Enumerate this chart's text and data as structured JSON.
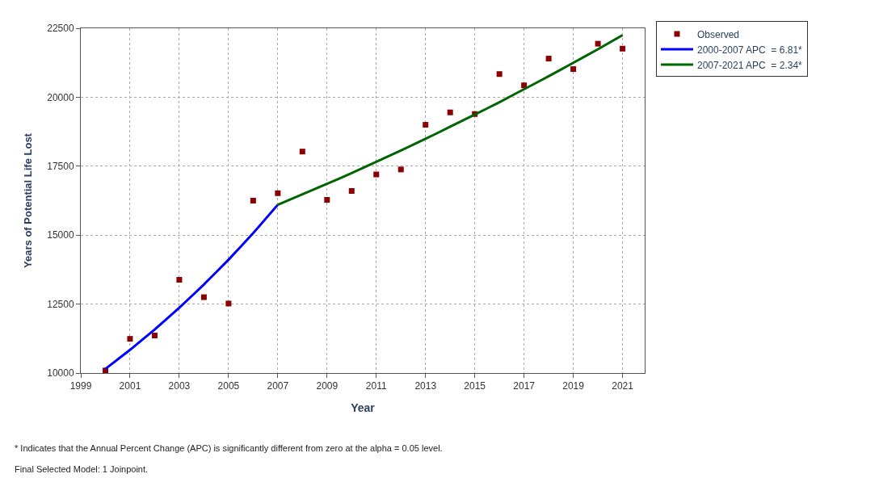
{
  "chart_data": {
    "type": "scatter",
    "xlabel": "Year",
    "ylabel": "Years of Potential Life Lost",
    "xlim": [
      1999,
      2021.9
    ],
    "xticks": [
      1999,
      2001,
      2003,
      2005,
      2007,
      2009,
      2011,
      2013,
      2015,
      2017,
      2019,
      2021
    ],
    "ylim": [
      10000,
      22500
    ],
    "yticks": [
      10000,
      12500,
      15000,
      17500,
      20000,
      22500
    ],
    "grid": true,
    "legend": "top right",
    "series": [
      {
        "name": "Observed",
        "marker": "square",
        "color": "#8b0000",
        "x": [
          2000,
          2001,
          2002,
          2003,
          2004,
          2005,
          2006,
          2007,
          2008,
          2009,
          2010,
          2011,
          2012,
          2013,
          2014,
          2015,
          2016,
          2017,
          2018,
          2019,
          2020,
          2021
        ],
        "values": [
          10090,
          11240,
          11360,
          13380,
          12750,
          12520,
          16250,
          16520,
          18030,
          16280,
          16600,
          17200,
          17380,
          19000,
          19450,
          19390,
          20840,
          20430,
          21400,
          21020,
          21940,
          21760
        ]
      },
      {
        "name": "2000-2007 APC  = 6.81*",
        "type": "line",
        "marker": "none",
        "color": "#0000ff",
        "x": [
          2000,
          2001,
          2002,
          2003,
          2004,
          2005,
          2006,
          2007
        ],
        "values": [
          10150,
          10840,
          11580,
          12370,
          13210,
          14110,
          15070,
          16100
        ]
      },
      {
        "name": "2007-2021 APC  = 2.34*",
        "type": "line",
        "marker": "none",
        "color": "#006400",
        "x": [
          2007,
          2008,
          2009,
          2010,
          2011,
          2012,
          2013,
          2014,
          2015,
          2016,
          2017,
          2018,
          2019,
          2020,
          2021
        ],
        "values": [
          16100,
          16480,
          16860,
          17250,
          17660,
          18070,
          18490,
          18930,
          19370,
          19820,
          20290,
          20760,
          21250,
          21740,
          22250
        ]
      }
    ],
    "annotations": [
      "* Indicates that the Annual Percent Change (APC) is significantly different from zero at the alpha = 0.05 level.",
      "Final Selected Model: 1 Joinpoint."
    ]
  }
}
